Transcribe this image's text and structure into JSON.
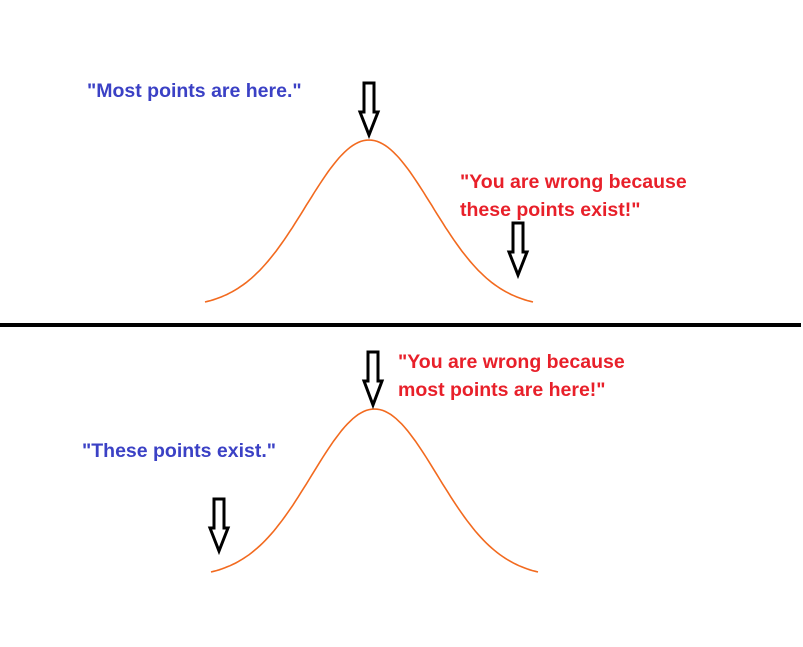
{
  "top_panel": {
    "claim": "\"Most points are here.\"",
    "reply": [
      "\"You are wrong because",
      "these points exist!\""
    ]
  },
  "bottom_panel": {
    "claim": "\"These points exist.\"",
    "reply": [
      "\"You are wrong because",
      "most points are here!\""
    ]
  }
}
